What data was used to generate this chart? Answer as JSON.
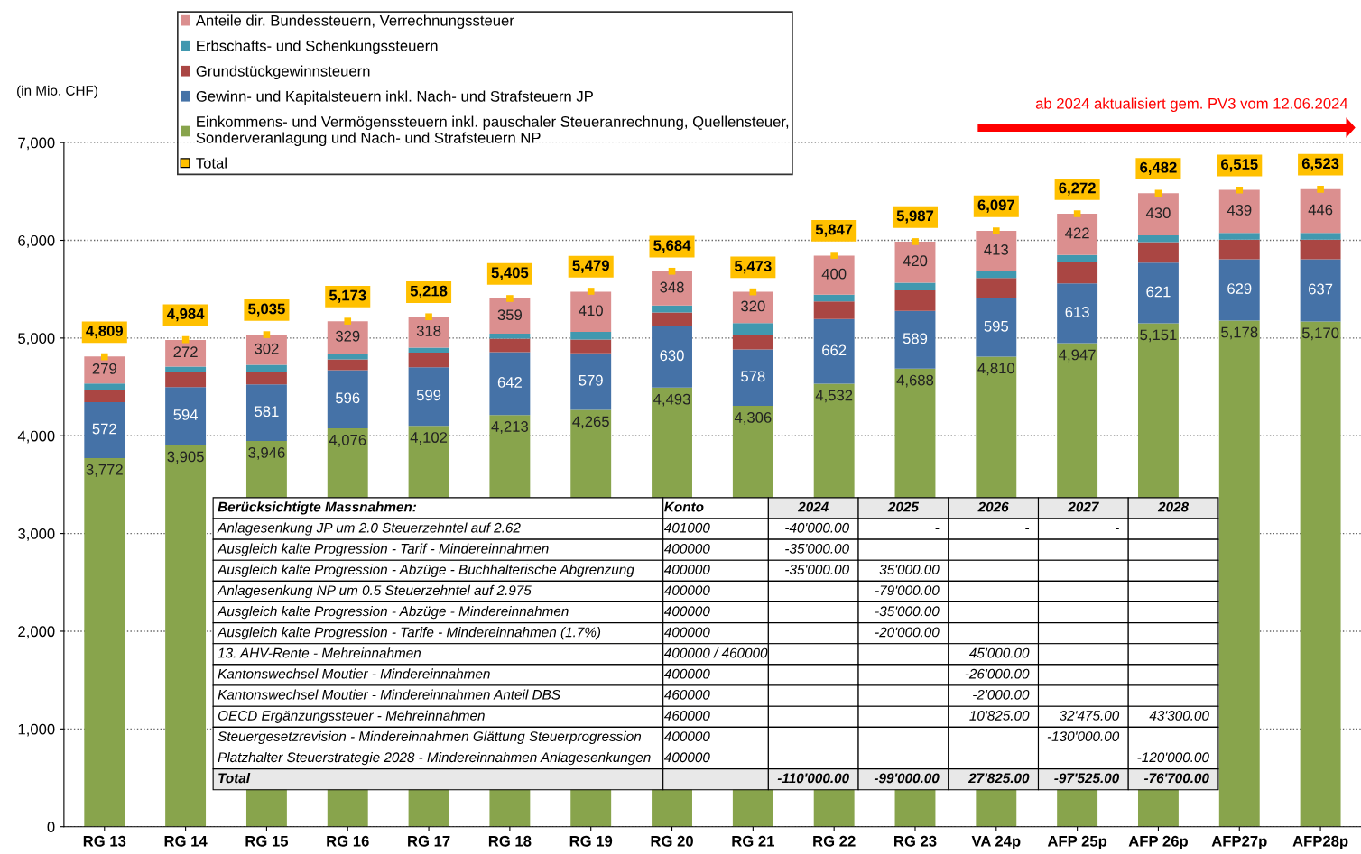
{
  "chart_data": {
    "type": "bar",
    "stacked": true,
    "ylabel": "(in Mio. CHF)",
    "categories": [
      "RG 13",
      "RG 14",
      "RG 15",
      "RG 16",
      "RG 17",
      "RG 18",
      "RG 19",
      "RG 20",
      "RG 21",
      "RG 22",
      "RG 23",
      "VA 24p",
      "AFP 25p",
      "AFP 26p",
      "AFP27p",
      "AFP28p"
    ],
    "series": [
      {
        "name": "Einkommens- und Vermögenssteuern inkl. pauschaler Steueranrechnung, Quellensteuer,\nSonderveranlagung und Nach- und Strafsteuern NP",
        "color": "#88a44c",
        "values": [
          3772,
          3905,
          3946,
          4076,
          4102,
          4213,
          4265,
          4493,
          4306,
          4532,
          4688,
          4810,
          4947,
          5151,
          5178,
          5170
        ],
        "value_labels": [
          "3,772",
          "3,905",
          "3,946",
          "4,076",
          "4,102",
          "4,213",
          "4,265",
          "4,493",
          "4,306",
          "4,532",
          "4,688",
          "4,810",
          "4,947",
          "5,151",
          "5,178",
          "5,170"
        ]
      },
      {
        "name": "Gewinn- und Kapitalsteuern inkl. Nach- und Strafsteuern JP",
        "color": "#4572a7",
        "values": [
          572,
          594,
          581,
          596,
          599,
          642,
          579,
          630,
          578,
          662,
          589,
          595,
          613,
          621,
          629,
          637
        ],
        "value_labels": [
          "572",
          "594",
          "581",
          "596",
          "599",
          "642",
          "579",
          "630",
          "578",
          "662",
          "589",
          "595",
          "613",
          "621",
          "629",
          "637"
        ]
      },
      {
        "name": "Grundstückgewinnsteuern",
        "color": "#aa4643",
        "values": [
          130,
          150,
          130,
          110,
          150,
          140,
          140,
          140,
          150,
          180,
          210,
          210,
          220,
          210,
          200,
          200
        ]
      },
      {
        "name": "Erbschafts- und Schenkungssteuern",
        "color": "#4198af",
        "values": [
          60,
          60,
          70,
          60,
          50,
          50,
          80,
          70,
          120,
          70,
          80,
          70,
          70,
          70,
          70,
          70
        ]
      },
      {
        "name": "Anteile dir. Bundessteuern, Verrechnungssteuer",
        "color": "#db8f8f",
        "values": [
          279,
          272,
          302,
          329,
          318,
          359,
          410,
          348,
          320,
          400,
          420,
          413,
          422,
          430,
          439,
          446
        ],
        "value_labels": [
          "279",
          "272",
          "302",
          "329",
          "318",
          "359",
          "410",
          "348",
          "320",
          "400",
          "420",
          "413",
          "422",
          "430",
          "439",
          "446"
        ]
      },
      {
        "name": "Total",
        "type": "scatter",
        "color": "#ffc000",
        "values": [
          4809,
          4984,
          5035,
          5173,
          5218,
          5405,
          5479,
          5684,
          5473,
          5847,
          5987,
          6097,
          6272,
          6482,
          6515,
          6523
        ],
        "value_labels": [
          "4,809",
          "4,984",
          "5,035",
          "5,173",
          "5,218",
          "5,405",
          "5,479",
          "5,684",
          "5,473",
          "5,847",
          "5,987",
          "6,097",
          "6,272",
          "6,482",
          "6,515",
          "6,523"
        ]
      }
    ],
    "ylim": [
      0,
      7000
    ],
    "yticks": [
      0,
      {
        "value": 1000,
        "label": "1,000"
      },
      {
        "value": 2000,
        "label": "2,000"
      },
      {
        "value": 3000,
        "label": "3,000"
      },
      {
        "value": 4000,
        "label": "4,000"
      },
      {
        "value": 5000,
        "label": "5,000"
      },
      {
        "value": 6000,
        "label": "6,000"
      },
      {
        "value": 7000,
        "label": "7,000"
      }
    ],
    "grid": "y",
    "legend": "top left",
    "annotations": [
      "ab 2024 aktualisiert gem. PV3 vom 12.06.2024",
      "Berücksichtigte Massnahmen:",
      "Konto",
      "2024",
      "2025",
      "2026",
      "2027",
      "2028",
      "Anlagesenkung JP um 2.0 Steuerzehntel auf 2.62",
      "401000",
      "-40'000.00",
      "-",
      "-",
      "-",
      null,
      "Ausgleich kalte Progression - Tarif - Mindereinnahmen",
      "400000",
      "-35'000.00",
      null,
      null,
      null,
      null,
      "Ausgleich kalte Progression - Abzüge - Buchhalterische Abgrenzung",
      "400000",
      "-35'000.00",
      "35'000.00",
      null,
      null,
      null,
      "Anlagesenkung NP um 0.5 Steuerzehntel auf 2.975",
      "400000",
      null,
      "-79'000.00",
      null,
      null,
      null,
      "Ausgleich kalte Progression - Abzüge - Mindereinnahmen",
      "400000",
      null,
      "-35'000.00",
      null,
      null,
      null,
      "Ausgleich kalte Progression - Tarife - Mindereinnahmen (1.7%)",
      "400000",
      null,
      "-20'000.00",
      null,
      null,
      null,
      "13. AHV-Rente - Mehreinnahmen",
      "400000 / 460000",
      null,
      null,
      "45'000.00",
      null,
      null,
      "Kantonswechsel Moutier - Mindereinnahmen",
      "400000",
      null,
      null,
      "-26'000.00",
      null,
      null,
      "Kantonswechsel Moutier - Mindereinnahmen Anteil DBS",
      "460000",
      null,
      null,
      "-2'000.00",
      null,
      null,
      "OECD Ergänzungssteuer - Mehreinnahmen",
      "460000",
      null,
      null,
      "10'825.00",
      "32'475.00",
      "43'300.00",
      "Steuergesetzrevision - Mindereinnahmen Glättung Steuerprogression",
      "400000",
      null,
      null,
      null,
      "-130'000.00",
      null,
      "Platzhalter Steuerstrategie 2028 - Mindereinnahmen Anlagesenkungen",
      "400000",
      null,
      null,
      null,
      null,
      "-120'000.00",
      "Total",
      null,
      "-110'000.00",
      "-99'000.00",
      "27'825.00",
      "-97'525.00",
      "-76'700.00"
    ]
  }
}
